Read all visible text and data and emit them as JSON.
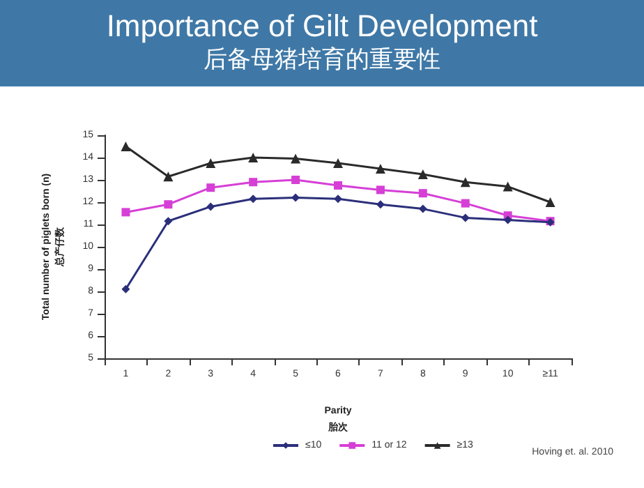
{
  "chart_data": {
    "type": "line",
    "title": "Importance of Gilt Development",
    "subtitle": "后备母猪培育的重要性",
    "xlabel": "Parity\n胎次",
    "ylabel": "Total number of piglets born (n)\n总产仔数",
    "categories": [
      "1",
      "2",
      "3",
      "4",
      "5",
      "6",
      "7",
      "8",
      "9",
      "10",
      "≥11"
    ],
    "series": [
      {
        "name": "≤10",
        "color": "#2b2f7a",
        "marker": "diamond",
        "values": [
          8.1,
          11.15,
          11.8,
          12.15,
          12.2,
          12.15,
          11.9,
          11.7,
          11.3,
          11.2,
          11.1
        ]
      },
      {
        "name": "11 or 12",
        "color": "#d63fd6",
        "marker": "square",
        "values": [
          11.55,
          11.9,
          12.65,
          12.9,
          13.0,
          12.75,
          12.55,
          12.4,
          11.95,
          11.4,
          11.15
        ]
      },
      {
        "name": "≥13",
        "color": "#2a2a2a",
        "marker": "triangle",
        "values": [
          14.5,
          13.15,
          13.75,
          14.0,
          13.95,
          13.75,
          13.5,
          13.25,
          12.9,
          12.7,
          12.0
        ]
      }
    ],
    "ylim": [
      5,
      15
    ],
    "yticks": [
      5,
      6,
      7,
      8,
      9,
      10,
      11,
      12,
      13,
      14,
      15
    ],
    "grid": false,
    "legend": "bottom",
    "line_style": "solid",
    "annotations": [
      "Hoving et. al. 2010"
    ]
  }
}
